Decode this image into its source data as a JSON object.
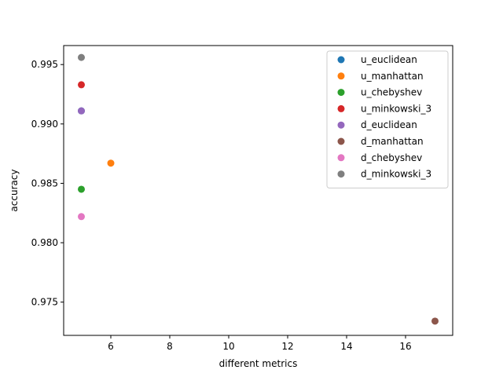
{
  "chart_data": {
    "type": "scatter",
    "title": "",
    "xlabel": "different metrics",
    "ylabel": "accuracy",
    "xlim": [
      4.4,
      17.6
    ],
    "ylim": [
      0.9722,
      0.9966
    ],
    "xticks": [
      6,
      8,
      10,
      12,
      14,
      16
    ],
    "yticks": [
      0.975,
      0.98,
      0.985,
      0.99,
      0.995
    ],
    "xtick_labels": [
      "6",
      "8",
      "10",
      "12",
      "14",
      "16"
    ],
    "ytick_labels": [
      "0.975",
      "0.980",
      "0.985",
      "0.990",
      "0.995"
    ],
    "legend_position": "top-right",
    "series": [
      {
        "name": "u_euclidean",
        "color": "#1f77b4",
        "x": [
          5
        ],
        "y": [
          0.9911
        ]
      },
      {
        "name": "u_manhattan",
        "color": "#ff7f0e",
        "x": [
          6
        ],
        "y": [
          0.9867
        ]
      },
      {
        "name": "u_chebyshev",
        "color": "#2ca02c",
        "x": [
          5
        ],
        "y": [
          0.9845
        ]
      },
      {
        "name": "u_minkowski_3",
        "color": "#d62728",
        "x": [
          5
        ],
        "y": [
          0.9933
        ]
      },
      {
        "name": "d_euclidean",
        "color": "#9467bd",
        "x": [
          5
        ],
        "y": [
          0.9911
        ]
      },
      {
        "name": "d_manhattan",
        "color": "#8c564b",
        "x": [
          17
        ],
        "y": [
          0.9734
        ]
      },
      {
        "name": "d_chebyshev",
        "color": "#e377c2",
        "x": [
          5
        ],
        "y": [
          0.9822
        ]
      },
      {
        "name": "d_minkowski_3",
        "color": "#7f7f7f",
        "x": [
          5
        ],
        "y": [
          0.9956
        ]
      }
    ]
  }
}
